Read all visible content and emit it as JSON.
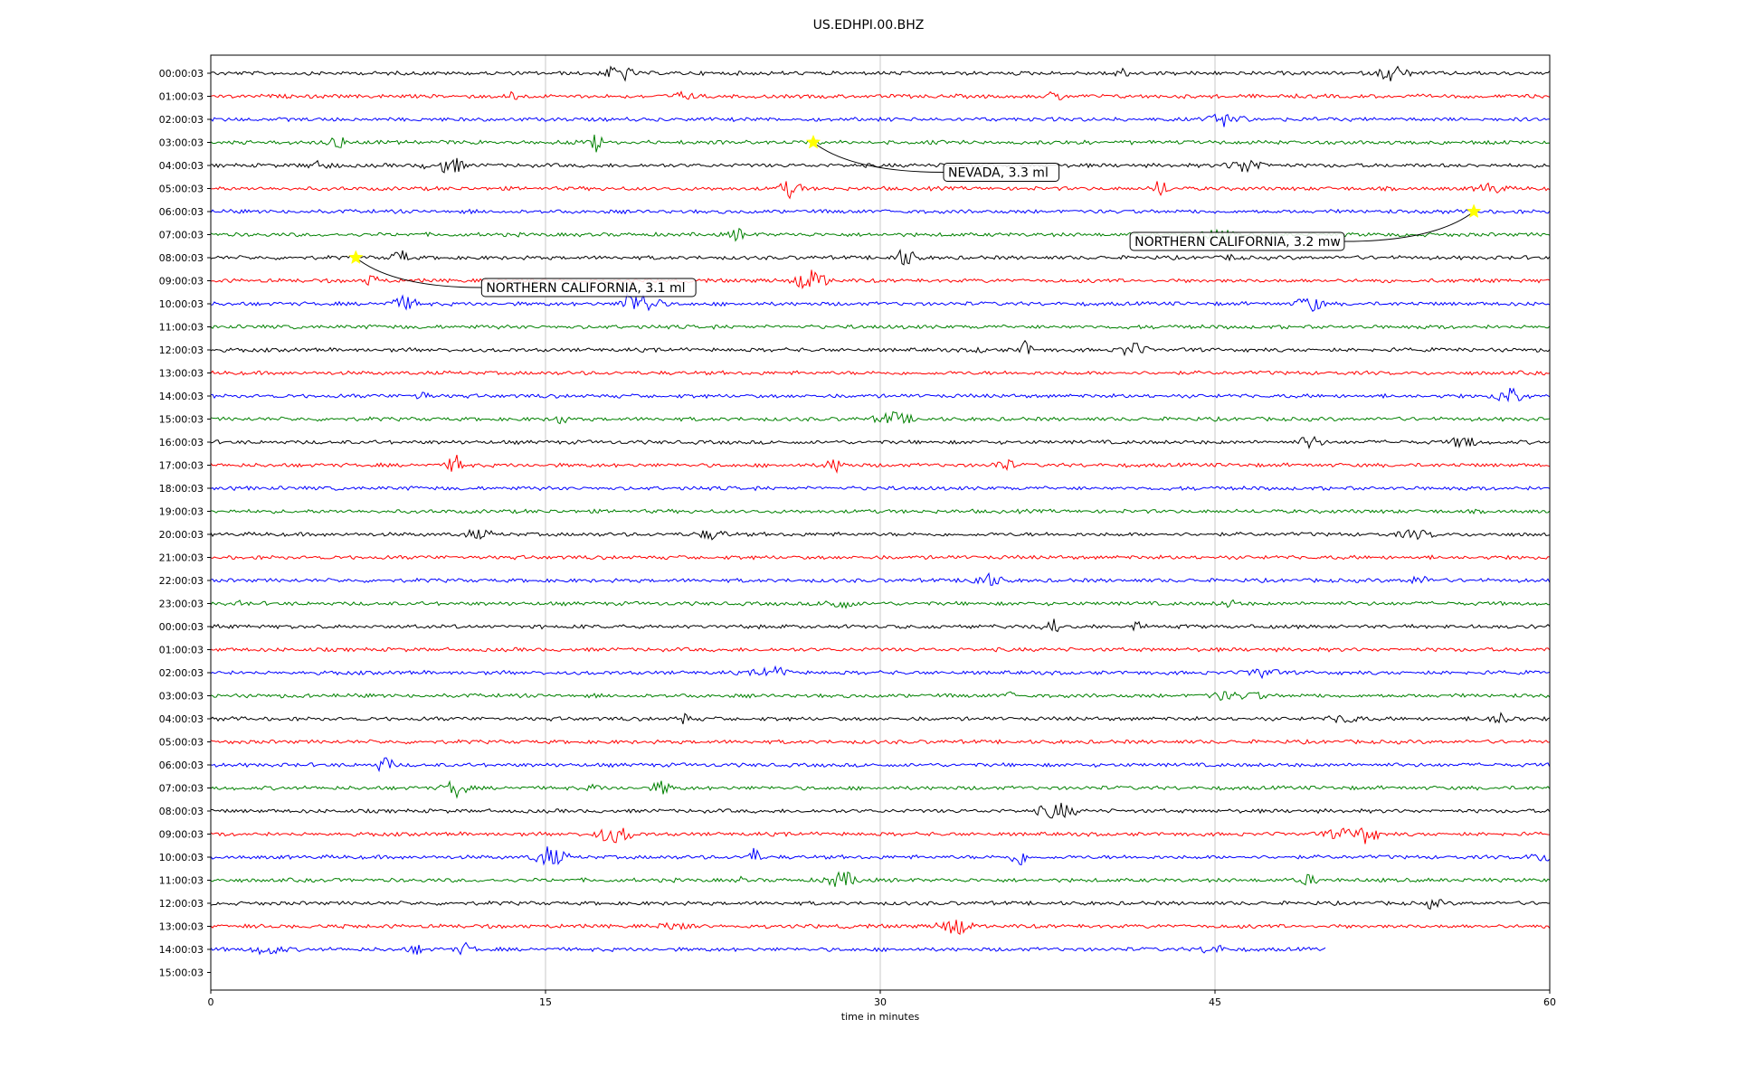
{
  "chart_data": {
    "type": "line",
    "title": "US.EDHPI.00.BHZ",
    "xlabel": "time in minutes",
    "ylabel": "",
    "xlim": [
      0,
      60
    ],
    "x_ticks": [
      0,
      15,
      30,
      45,
      60
    ],
    "grid": "vertical",
    "colors": [
      "#000000",
      "#ff0000",
      "#0000ff",
      "#008000"
    ],
    "tracks": [
      "00:00:03",
      "01:00:03",
      "02:00:03",
      "03:00:03",
      "04:00:03",
      "05:00:03",
      "06:00:03",
      "07:00:03",
      "08:00:03",
      "09:00:03",
      "10:00:03",
      "11:00:03",
      "12:00:03",
      "13:00:03",
      "14:00:03",
      "15:00:03",
      "16:00:03",
      "17:00:03",
      "18:00:03",
      "19:00:03",
      "20:00:03",
      "21:00:03",
      "22:00:03",
      "23:00:03",
      "00:00:03",
      "01:00:03",
      "02:00:03",
      "03:00:03",
      "04:00:03",
      "05:00:03",
      "06:00:03",
      "07:00:03",
      "08:00:03",
      "09:00:03",
      "10:00:03",
      "11:00:03",
      "12:00:03",
      "13:00:03",
      "14:00:03",
      "15:00:03"
    ],
    "trace_end_minutes": [
      60,
      60,
      60,
      60,
      60,
      60,
      60,
      60,
      60,
      60,
      60,
      60,
      60,
      60,
      60,
      60,
      60,
      60,
      60,
      60,
      60,
      60,
      60,
      60,
      60,
      60,
      60,
      60,
      60,
      60,
      60,
      60,
      60,
      60,
      60,
      60,
      60,
      60,
      50,
      0
    ],
    "annotations": [
      {
        "label": "NEVADA, 3.3 ml",
        "track": 3,
        "minute": 27.0
      },
      {
        "label": "NORTHERN CALIFORNIA, 3.2 mw",
        "track": 6,
        "minute": 56.6
      },
      {
        "label": "NORTHERN CALIFORNIA, 3.1 ml",
        "track": 8,
        "minute": 6.5
      }
    ]
  }
}
